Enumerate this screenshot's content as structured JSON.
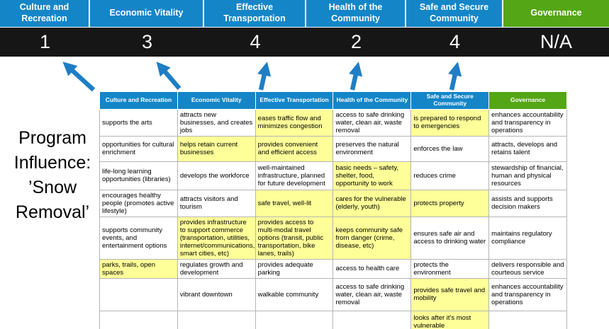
{
  "title": "Program Influence: ’Snow Removal’",
  "colors": {
    "blue": "#1486c8",
    "green": "#55a616",
    "yellow": "#ffff99",
    "score_bg": "#161616",
    "arrow": "#1e7ec5",
    "border": "#b5b5b5"
  },
  "scoreboard": {
    "columns": [
      {
        "label": "Culture and Recreation",
        "score": "1",
        "theme": "blue"
      },
      {
        "label": "Economic Vitality",
        "score": "3",
        "theme": "blue"
      },
      {
        "label": "Effective Transportation",
        "score": "4",
        "theme": "blue"
      },
      {
        "label": "Health of the Community",
        "score": "2",
        "theme": "blue"
      },
      {
        "label": "Safe and Secure Community",
        "score": "4",
        "theme": "blue"
      },
      {
        "label": "Governance",
        "score": "N/A",
        "theme": "green"
      }
    ]
  },
  "matrix": {
    "headers": [
      {
        "label": "Culture and Recreation",
        "theme": "blue"
      },
      {
        "label": "Economic Vitality",
        "theme": "blue"
      },
      {
        "label": "Effective Transportation",
        "theme": "blue"
      },
      {
        "label": "Health of the Community",
        "theme": "blue"
      },
      {
        "label": "Safe and Secure Community",
        "theme": "blue"
      },
      {
        "label": "Governance",
        "theme": "green"
      }
    ],
    "rows": [
      [
        {
          "t": "supports the arts",
          "h": false
        },
        {
          "t": "attracts new businesses, and creates jobs",
          "h": false
        },
        {
          "t": "eases traffic flow and minimizes congestion",
          "h": true
        },
        {
          "t": "access to safe drinking water, clean air, waste removal",
          "h": false
        },
        {
          "t": "is prepared to respond to emergencies",
          "h": true
        },
        {
          "t": "enhances accountability and transparency in operations",
          "h": false
        }
      ],
      [
        {
          "t": "opportunities for cultural enrichment",
          "h": false
        },
        {
          "t": "helps retain current businesses",
          "h": true
        },
        {
          "t": "provides convenient and efficient access",
          "h": true
        },
        {
          "t": "preserves the natural environment",
          "h": false
        },
        {
          "t": "enforces the law",
          "h": false
        },
        {
          "t": "attracts, develops and retains talent",
          "h": false
        }
      ],
      [
        {
          "t": "life-long learning opportunities (libraries)",
          "h": false
        },
        {
          "t": "develops the workforce",
          "h": false
        },
        {
          "t": "well-maintained infrastructure, planned for future development",
          "h": false
        },
        {
          "t": "basic needs – safety, shelter, food, opportunity to work",
          "h": true
        },
        {
          "t": "reduces crime",
          "h": false
        },
        {
          "t": "stewardship of financial, human and physical resources",
          "h": false
        }
      ],
      [
        {
          "t": "encourages healthy people (promotes active lifestyle)",
          "h": false
        },
        {
          "t": "attracts visitors and tourism",
          "h": false
        },
        {
          "t": "safe travel, well-lit",
          "h": true
        },
        {
          "t": "cares for the vulnerable (elderly, youth)",
          "h": true
        },
        {
          "t": "protects property",
          "h": true
        },
        {
          "t": "assists and supports decision makers",
          "h": false
        }
      ],
      [
        {
          "t": "supports community events, and entertainment options",
          "h": false
        },
        {
          "t": "provides infrastructure to support commerce (transportation, utilities, internet/communications, smart cities, etc)",
          "h": true
        },
        {
          "t": "provides access to multi-modal travel options (transit, public transportation, bike lanes, trails)",
          "h": true
        },
        {
          "t": "keeps community safe from danger (crime, disease, etc)",
          "h": true
        },
        {
          "t": "ensures safe air and access to drinking water",
          "h": false
        },
        {
          "t": "maintains regulatory compliance",
          "h": false
        }
      ],
      [
        {
          "t": "parks, trails, open spaces",
          "h": true
        },
        {
          "t": "regulates growth and development",
          "h": false
        },
        {
          "t": "provides adequate parking",
          "h": false
        },
        {
          "t": "access to health care",
          "h": false
        },
        {
          "t": "protects the environment",
          "h": false
        },
        {
          "t": "delivers responsible and courteous service",
          "h": false
        }
      ],
      [
        {
          "t": "",
          "h": false
        },
        {
          "t": "vibrant downtown",
          "h": false
        },
        {
          "t": "walkable community",
          "h": false
        },
        {
          "t": "access to safe drinking water, clean air, waste removal",
          "h": false
        },
        {
          "t": "provides safe travel and mobility",
          "h": true
        },
        {
          "t": "enhances accountability and transparency in operations",
          "h": false
        }
      ],
      [
        {
          "t": "",
          "h": false
        },
        {
          "t": "",
          "h": false
        },
        {
          "t": "",
          "h": false
        },
        {
          "t": "",
          "h": false
        },
        {
          "t": "looks after it's most vulnerable",
          "h": true
        },
        {
          "t": "",
          "h": false
        }
      ]
    ]
  }
}
